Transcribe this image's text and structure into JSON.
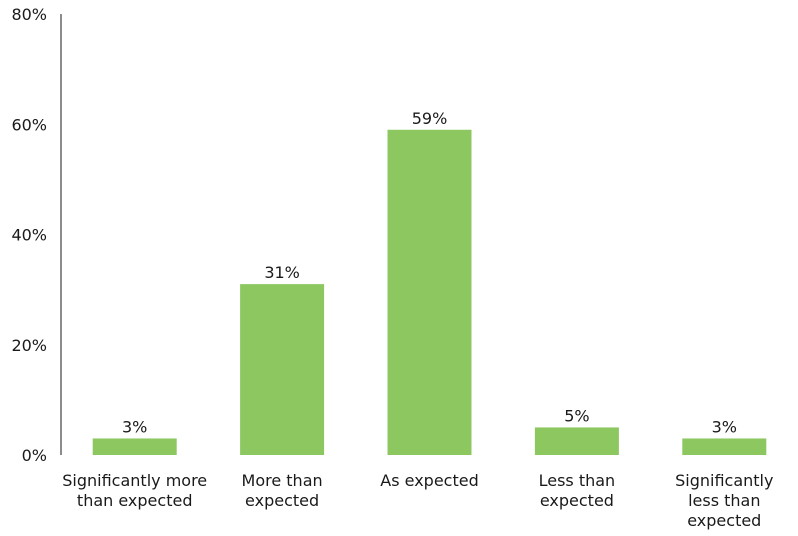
{
  "chart_data": {
    "type": "bar",
    "title": "",
    "xlabel": "",
    "ylabel": "",
    "categories": [
      [
        "Significantly more",
        "than expected"
      ],
      [
        "More than",
        "expected"
      ],
      [
        "As expected"
      ],
      [
        "Less than",
        "expected"
      ],
      [
        "Significantly",
        "less than",
        "expected"
      ]
    ],
    "values": [
      3,
      31,
      59,
      5,
      3
    ],
    "data_labels": [
      "3%",
      "31%",
      "59%",
      "5%",
      "3%"
    ],
    "ylim": [
      0,
      80
    ],
    "yticks": [
      0,
      20,
      40,
      60,
      80
    ],
    "ytick_labels": [
      "0%",
      "20%",
      "40%",
      "60%",
      "80%"
    ],
    "grid": false,
    "legend": "none",
    "colors": {
      "bar": "#8cc760",
      "axis": "#1a1a1a",
      "text": "#1a1a1a"
    }
  }
}
